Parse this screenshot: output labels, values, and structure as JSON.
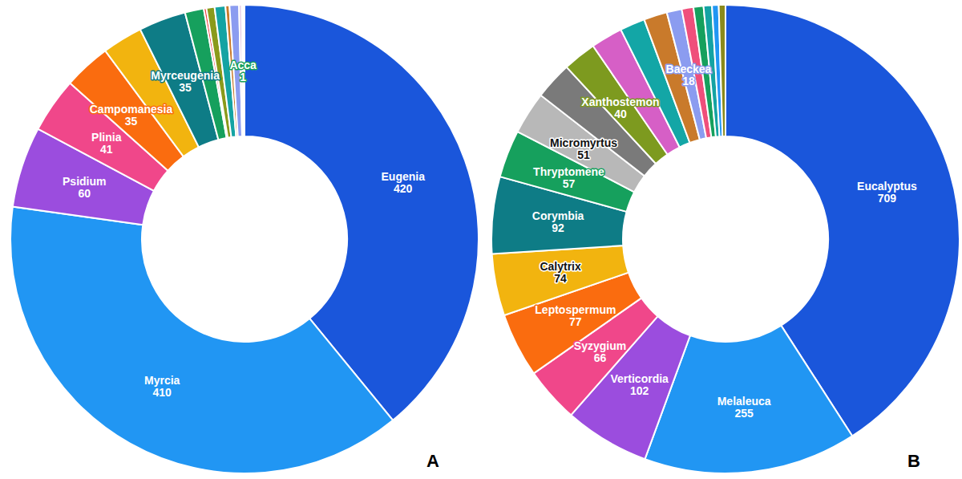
{
  "chart_data": [
    {
      "type": "pie",
      "title": "A",
      "data_labels": true,
      "categories": [
        "Eugenia",
        "Myrcia",
        "Psidium",
        "Plinia",
        "Campomanesia",
        null,
        "Myrceugenia",
        null,
        null,
        null,
        null,
        null,
        null,
        null,
        "Acca",
        null
      ],
      "values": [
        420,
        410,
        60,
        41,
        35,
        30,
        35,
        14,
        2,
        6,
        8,
        3,
        7,
        2,
        1,
        1
      ],
      "colors": [
        "#1a56db",
        "#2196f3",
        "#9b4dde",
        "#f0478a",
        "#fa6c0f",
        "#f2b40f",
        "#0e7c86",
        "#16a05d",
        "#ef4444",
        "#8a9a1b",
        "#14a3a3",
        "#c97a2b",
        "#8b9cf0",
        "#e0c0e0",
        "#16a05d",
        "#ef4444"
      ]
    },
    {
      "type": "pie",
      "title": "B",
      "data_labels": true,
      "categories": [
        "Eucalyptus",
        "Melaleuca",
        "Verticordia",
        "Syzygium",
        "Leptospermum",
        "Calytrix",
        "Corymbia",
        "Thryptomene",
        "Micromyrtus",
        null,
        "Xanthostemon",
        null,
        null,
        null,
        "Baeckea",
        null,
        null,
        null,
        null,
        null
      ],
      "values": [
        709,
        255,
        102,
        66,
        77,
        74,
        92,
        57,
        51,
        45,
        40,
        38,
        30,
        28,
        18,
        14,
        12,
        10,
        8,
        8
      ],
      "colors": [
        "#1a56db",
        "#2196f3",
        "#9b4dde",
        "#f0478a",
        "#fa6c0f",
        "#f2b40f",
        "#0e7c86",
        "#16a05d",
        "#b8b8b8",
        "#7a7a7a",
        "#7d9a1f",
        "#d65fc6",
        "#13a6a6",
        "#c97a2b",
        "#8b9cf0",
        "#ef4f7b",
        "#16a05d",
        "#14a3a3",
        "#2196f3",
        "#8a8a1b"
      ]
    }
  ]
}
